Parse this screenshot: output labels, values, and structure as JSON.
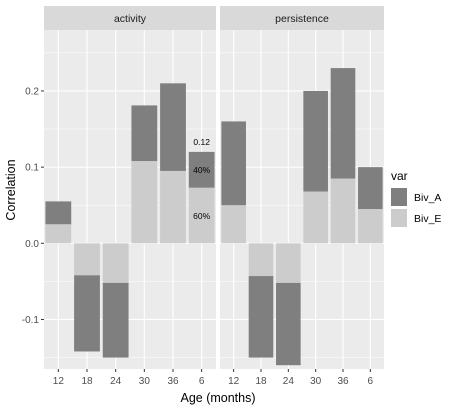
{
  "chart_data": {
    "type": "bar",
    "stacked": true,
    "xlabel": "Age (months)",
    "ylabel": "Correlation",
    "ylim": [
      -0.165,
      0.28
    ],
    "yticks": [
      -0.1,
      0.0,
      0.1,
      0.2
    ],
    "ytick_labels": [
      "-0.1",
      "0.0",
      "0.1",
      "0.2"
    ],
    "categories": [
      "12",
      "18",
      "24",
      "30",
      "36",
      "6"
    ],
    "legend": {
      "title": "var",
      "position": "right"
    },
    "grid": true,
    "colors": {
      "Biv_A": "#7f7f7f",
      "Biv_E": "#cccccc",
      "panel_bg": "#ebebeb",
      "strip_bg": "#d9d9d9",
      "grid": "#ffffff"
    },
    "panels": [
      {
        "name": "activity",
        "series": [
          {
            "name": "Biv_E",
            "values": [
              0.025,
              -0.042,
              -0.052,
              0.108,
              0.095,
              0.073
            ]
          },
          {
            "name": "Biv_A",
            "values": [
              0.03,
              -0.1,
              -0.098,
              0.073,
              0.115,
              0.047
            ]
          }
        ],
        "annotations": [
          {
            "category": "6",
            "text": "0.12",
            "y": 0.133
          },
          {
            "category": "6",
            "text": "40%",
            "y": 0.096
          },
          {
            "category": "6",
            "text": "60%",
            "y": 0.036
          }
        ]
      },
      {
        "name": "persistence",
        "series": [
          {
            "name": "Biv_E",
            "values": [
              0.05,
              -0.043,
              -0.052,
              0.068,
              0.085,
              0.045
            ]
          },
          {
            "name": "Biv_A",
            "values": [
              0.11,
              -0.107,
              -0.108,
              0.132,
              0.145,
              0.055
            ]
          }
        ],
        "annotations": []
      }
    ]
  }
}
